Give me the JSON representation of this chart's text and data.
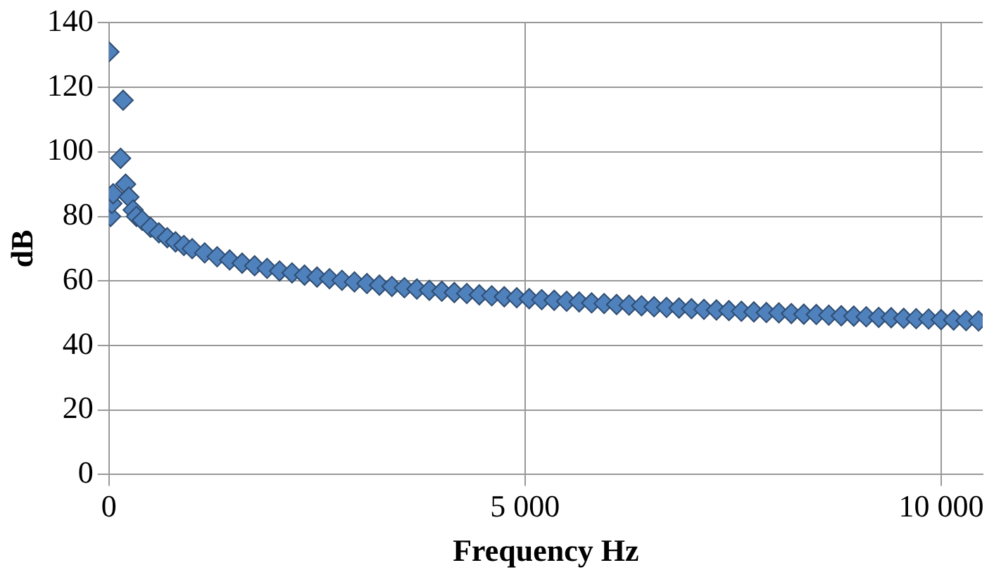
{
  "chart_data": {
    "type": "scatter",
    "xlabel": "Frequency Hz",
    "ylabel": "dB",
    "xlim": [
      0,
      10500
    ],
    "xticks": [
      0,
      {
        "value": 5000,
        "label": "5 000"
      },
      {
        "value": 10000,
        "label": "10 000"
      }
    ],
    "ylim": [
      0,
      140
    ],
    "yticks": [
      0,
      20,
      40,
      60,
      80,
      100,
      120,
      140
    ],
    "grid": true,
    "marker": "diamond",
    "legend": false,
    "series": [
      {
        "color": "#4f81bd",
        "x": [
          0,
          20,
          35,
          50,
          140,
          170,
          200,
          240,
          290,
          330,
          400,
          500,
          600,
          700,
          800,
          900,
          1000,
          1150,
          1300,
          1450,
          1600,
          1750,
          1900,
          2050,
          2200,
          2350,
          2500,
          2650,
          2800,
          2950,
          3100,
          3250,
          3400,
          3550,
          3700,
          3850,
          4000,
          4150,
          4300,
          4450,
          4600,
          4750,
          4900,
          5050,
          5200,
          5350,
          5500,
          5650,
          5800,
          5950,
          6100,
          6250,
          6400,
          6550,
          6700,
          6850,
          7000,
          7150,
          7300,
          7450,
          7600,
          7750,
          7900,
          8050,
          8200,
          8350,
          8500,
          8650,
          8800,
          8950,
          9100,
          9250,
          9400,
          9550,
          9700,
          9850,
          10000,
          10150,
          10300,
          10450
        ],
        "values": [
          131,
          80,
          84,
          87,
          98,
          116,
          90,
          86,
          82,
          80,
          78.8,
          76.6,
          74.9,
          73.4,
          72.1,
          71,
          70,
          68.7,
          67.5,
          66.5,
          65.5,
          64.7,
          63.9,
          63.1,
          62.5,
          61.8,
          61.2,
          60.7,
          60.2,
          59.7,
          59.2,
          58.7,
          58.3,
          57.9,
          57.5,
          57.1,
          56.8,
          56.4,
          56.1,
          55.7,
          55.4,
          55.1,
          54.8,
          54.5,
          54.2,
          54,
          53.7,
          53.5,
          53.2,
          53,
          52.7,
          52.5,
          52.3,
          52,
          51.8,
          51.6,
          51.4,
          51.2,
          51,
          50.8,
          50.6,
          50.4,
          50.2,
          50.1,
          49.9,
          49.7,
          49.6,
          49.4,
          49.2,
          49.1,
          48.9,
          48.7,
          48.6,
          48.4,
          48.3,
          48.2,
          48,
          47.9,
          47.7,
          47.6
        ]
      }
    ]
  }
}
